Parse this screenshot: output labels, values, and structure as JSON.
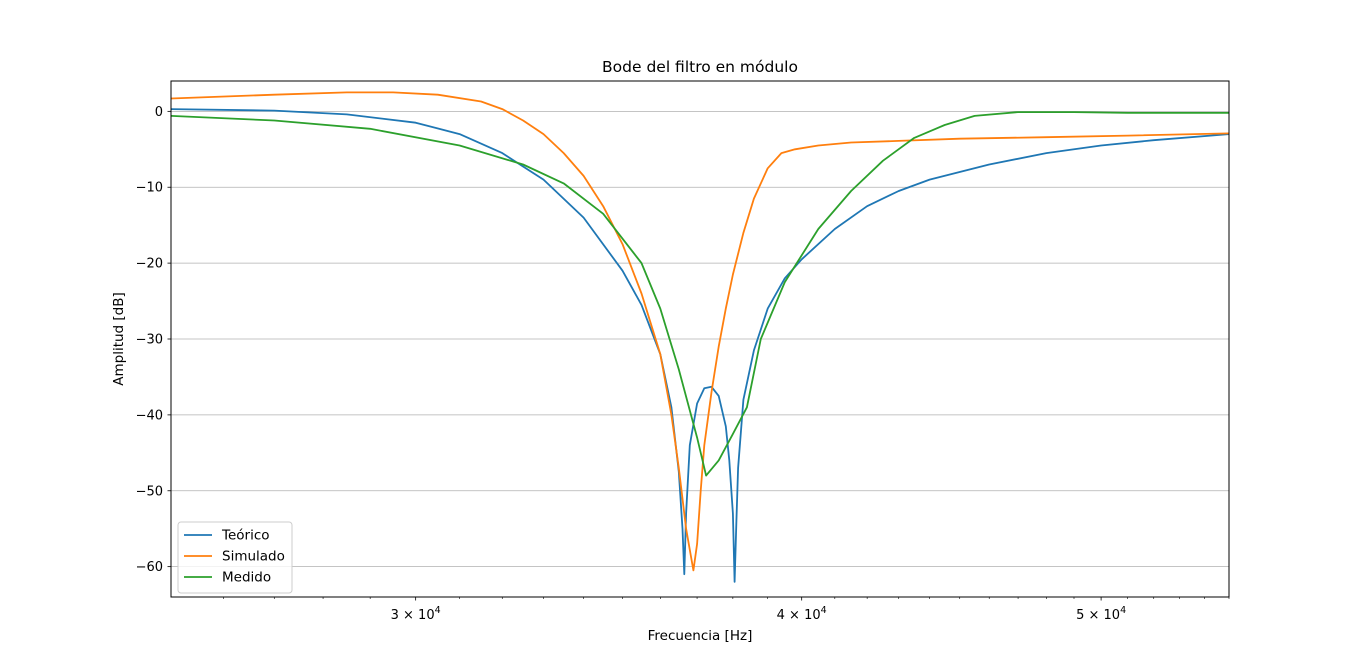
{
  "chart_data": {
    "type": "line",
    "title": "Bode del filtro en módulo",
    "xlabel": "Frecuencia [Hz]",
    "ylabel": "Amplitud [dB]",
    "x_scale": "log",
    "xlim": [
      25000,
      55000
    ],
    "ylim": [
      -64,
      4
    ],
    "grid": "horizontal",
    "legend_position": "lower-left",
    "x_ticks": [
      {
        "value": 30000,
        "mantissa": "3",
        "base": "10",
        "exponent": "4"
      },
      {
        "value": 40000,
        "mantissa": "4",
        "base": "10",
        "exponent": "4"
      },
      {
        "value": 50000,
        "mantissa": "5",
        "base": "10",
        "exponent": "4"
      }
    ],
    "y_ticks": [
      {
        "value": 0,
        "label": "0"
      },
      {
        "value": -10,
        "label": "−10"
      },
      {
        "value": -20,
        "label": "−20"
      },
      {
        "value": -30,
        "label": "−30"
      },
      {
        "value": -40,
        "label": "−40"
      },
      {
        "value": -50,
        "label": "−50"
      },
      {
        "value": -60,
        "label": "−60"
      }
    ],
    "series": [
      {
        "name": "Teórico",
        "color": "#1f77b4",
        "x": [
          25000,
          27000,
          28500,
          30000,
          31000,
          32000,
          33000,
          34000,
          35000,
          35500,
          36000,
          36300,
          36500,
          36600,
          36650,
          36700,
          36800,
          37000,
          37200,
          37400,
          37600,
          37800,
          37900,
          38000,
          38050,
          38100,
          38150,
          38300,
          38600,
          39000,
          39500,
          40000,
          41000,
          42000,
          43000,
          44000,
          46000,
          48000,
          50000,
          52000,
          55000
        ],
        "y": [
          0.3,
          0.1,
          -0.4,
          -1.5,
          -3.0,
          -5.5,
          -9.0,
          -14.0,
          -21.0,
          -25.5,
          -32.0,
          -39.0,
          -47.5,
          -55.0,
          -61.0,
          -53.0,
          -44.0,
          -38.5,
          -36.5,
          -36.3,
          -37.5,
          -41.5,
          -46.0,
          -53.0,
          -62.0,
          -54.0,
          -47.0,
          -38.0,
          -31.5,
          -26.0,
          -22.0,
          -19.5,
          -15.5,
          -12.5,
          -10.5,
          -9.0,
          -7.0,
          -5.5,
          -4.5,
          -3.8,
          -3.0
        ]
      },
      {
        "name": "Simulado",
        "color": "#ff7f0e",
        "x": [
          25000,
          27000,
          28500,
          29500,
          30500,
          31500,
          32000,
          32500,
          33000,
          33500,
          34000,
          34500,
          35000,
          35500,
          36000,
          36300,
          36500,
          36700,
          36900,
          37000,
          37100,
          37200,
          37400,
          37600,
          37800,
          38000,
          38300,
          38600,
          39000,
          39400,
          39800,
          40500,
          41500,
          43000,
          45000,
          48000,
          51000,
          55000
        ],
        "y": [
          1.7,
          2.2,
          2.5,
          2.5,
          2.2,
          1.3,
          0.3,
          -1.2,
          -3.0,
          -5.5,
          -8.5,
          -12.5,
          -17.5,
          -24.0,
          -32.0,
          -40.0,
          -47.0,
          -55.0,
          -60.5,
          -57.0,
          -50.0,
          -44.0,
          -37.0,
          -31.0,
          -26.0,
          -21.5,
          -16.0,
          -11.5,
          -7.5,
          -5.5,
          -5.0,
          -4.5,
          -4.1,
          -3.9,
          -3.6,
          -3.4,
          -3.2,
          -2.9
        ]
      },
      {
        "name": "Medido",
        "color": "#2ca02c",
        "x": [
          25000,
          27000,
          29000,
          31000,
          32500,
          33500,
          34500,
          35500,
          36000,
          36500,
          37000,
          37250,
          37600,
          38000,
          38400,
          38800,
          39500,
          40500,
          41500,
          42500,
          43500,
          44500,
          45500,
          47000,
          49000,
          51000,
          55000
        ],
        "y": [
          -0.6,
          -1.2,
          -2.3,
          -4.5,
          -7.0,
          -9.5,
          -13.5,
          -20.0,
          -26.0,
          -34.0,
          -43.0,
          -48.0,
          -46.0,
          -42.5,
          -39.0,
          -30.0,
          -22.5,
          -15.5,
          -10.5,
          -6.5,
          -3.5,
          -1.8,
          -0.6,
          -0.1,
          -0.1,
          -0.2,
          -0.2
        ]
      }
    ]
  }
}
